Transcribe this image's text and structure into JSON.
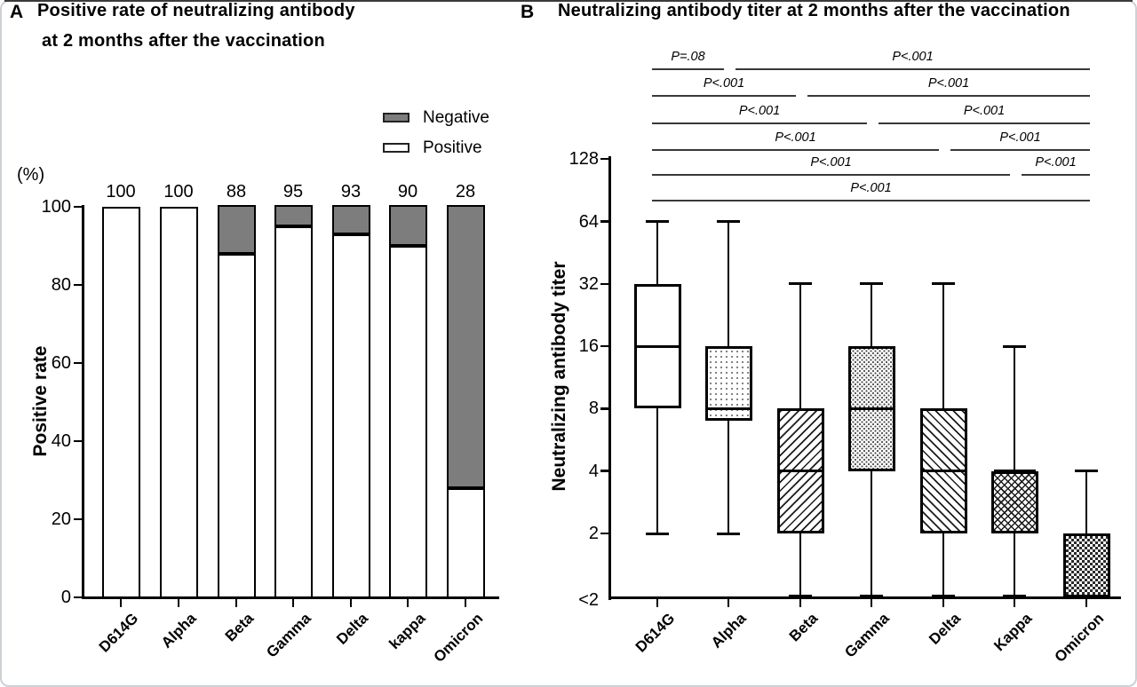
{
  "figure": {
    "panelA": {
      "panel_letter": "A",
      "title_line1": "Positive rate of neutralizing antibody",
      "title_line2": "at 2 months after the vaccination",
      "unit_label": "(%)",
      "y_axis_label": "Positive rate",
      "legend": [
        {
          "label": "Negative",
          "swatch": "gray"
        },
        {
          "label": "Positive",
          "swatch": "white"
        }
      ]
    },
    "panelB": {
      "panel_letter": "B",
      "title": "Neutralizing antibody titer at 2 months after the vaccination",
      "y_axis_label": "Neutralizing antibody titer"
    }
  },
  "colors": {
    "negative_fill": "#7d7d7d",
    "positive_fill": "#ffffff",
    "axis": "#000000",
    "p_line": "#383838"
  },
  "chart_data": [
    {
      "type": "bar",
      "panel": "A",
      "title": "Positive rate of neutralizing antibody at 2 months after the vaccination",
      "stacked": true,
      "categories": [
        "D614G",
        "Alpha",
        "Beta",
        "Gamma",
        "Delta",
        "kappa",
        "Omicron"
      ],
      "series": [
        {
          "name": "Positive",
          "values": [
            100,
            100,
            88,
            95,
            93,
            90,
            28
          ],
          "color": "#ffffff"
        },
        {
          "name": "Negative",
          "values": [
            0,
            0,
            12,
            5,
            7,
            10,
            72
          ],
          "color": "#7d7d7d"
        }
      ],
      "bar_value_labels": [
        "100",
        "100",
        "88",
        "95",
        "93",
        "90",
        "28"
      ],
      "xlabel": "",
      "ylabel": "Positive rate",
      "y_unit": "(%)",
      "y_ticks": [
        0,
        20,
        40,
        60,
        80,
        100
      ],
      "ylim": [
        0,
        100
      ],
      "grid": false,
      "legend_position": "top-right"
    },
    {
      "type": "box",
      "panel": "B",
      "title": "Neutralizing antibody titer at 2 months after the vaccination",
      "categories": [
        "D614G",
        "Alpha",
        "Beta",
        "Gamma",
        "Delta",
        "Kappa",
        "Omicron"
      ],
      "y_scale": "log2",
      "y_tick_labels": [
        "128",
        "64",
        "32",
        "16",
        "8",
        "4",
        "2",
        "<2"
      ],
      "ylabel": "Neutralizing antibody titer",
      "grid": false,
      "boxes": [
        {
          "category": "D614G",
          "whisker_low": 2,
          "q1": 8,
          "median": 16,
          "q3": 32,
          "whisker_high": 64,
          "pattern": "solid"
        },
        {
          "category": "Alpha",
          "whisker_low": 2,
          "q1": 7,
          "median": 8,
          "q3": 16,
          "whisker_high": 64,
          "pattern": "dots"
        },
        {
          "category": "Beta",
          "whisker_low": "<2",
          "q1": 2,
          "median": 4,
          "q3": 8,
          "whisker_high": 32,
          "pattern": "hatch-fwd"
        },
        {
          "category": "Gamma",
          "whisker_low": "<2",
          "q1": 4,
          "median": 8,
          "q3": 16,
          "whisker_high": 32,
          "pattern": "speckle"
        },
        {
          "category": "Delta",
          "whisker_low": "<2",
          "q1": 2,
          "median": 4,
          "q3": 8,
          "whisker_high": 32,
          "pattern": "hatch-back"
        },
        {
          "category": "Kappa",
          "whisker_low": "<2",
          "q1": 2,
          "median": 4,
          "q3": 4,
          "whisker_high": 16,
          "pattern": "cross"
        },
        {
          "category": "Omicron",
          "whisker_low": "<2",
          "q1": "<2",
          "median": "<2",
          "q3": 2,
          "whisker_high": 4,
          "pattern": "checker"
        }
      ],
      "comparisons": [
        {
          "segments": [
            {
              "from": "D614G",
              "to": "Alpha",
              "label": "P=.08"
            },
            {
              "from": "Alpha",
              "to": "Omicron",
              "label": "P<.001"
            }
          ]
        },
        {
          "segments": [
            {
              "from": "D614G",
              "to": "Beta",
              "label": "P<.001"
            },
            {
              "from": "Beta",
              "to": "Omicron",
              "label": "P<.001"
            }
          ]
        },
        {
          "segments": [
            {
              "from": "D614G",
              "to": "Gamma",
              "label": "P<.001"
            },
            {
              "from": "Gamma",
              "to": "Omicron",
              "label": "P<.001"
            }
          ]
        },
        {
          "segments": [
            {
              "from": "D614G",
              "to": "Delta",
              "label": "P<.001"
            },
            {
              "from": "Delta",
              "to": "Omicron",
              "label": "P<.001"
            }
          ]
        },
        {
          "segments": [
            {
              "from": "D614G",
              "to": "Kappa",
              "label": "P<.001"
            },
            {
              "from": "Kappa",
              "to": "Omicron",
              "label": "P<.001"
            }
          ]
        },
        {
          "segments": [
            {
              "from": "D614G",
              "to": "Omicron",
              "label": "P<.001"
            }
          ]
        }
      ]
    }
  ]
}
